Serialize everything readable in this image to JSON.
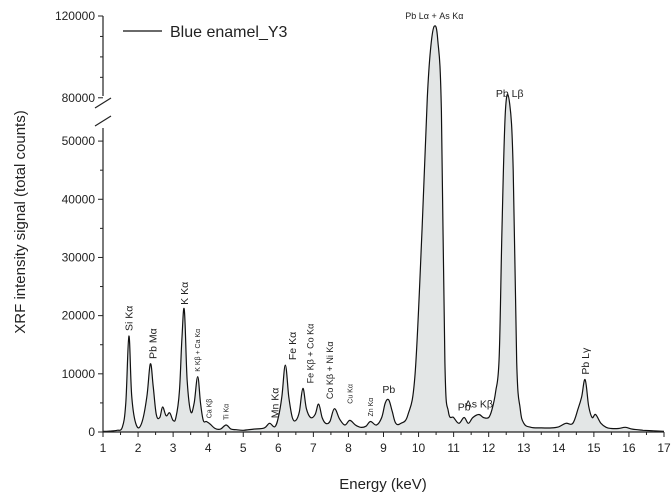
{
  "chart_data": {
    "type": "line",
    "title": "",
    "xlabel": "Energy (keV)",
    "ylabel": "XRF intensity signal (total counts)",
    "xlim": [
      1,
      17
    ],
    "x_ticks": [
      1,
      2,
      3,
      4,
      5,
      6,
      7,
      8,
      9,
      10,
      11,
      12,
      13,
      14,
      15,
      16,
      17
    ],
    "y_axis_break": {
      "from": 55000,
      "to": 75000
    },
    "y_ticks_lower": [
      0,
      10000,
      20000,
      30000,
      40000,
      50000
    ],
    "y_ticks_upper": [
      80000,
      120000
    ],
    "ylim": [
      0,
      120000
    ],
    "grid": false,
    "legend": {
      "position": "top-left",
      "entries": [
        "Blue enamel_Y3"
      ]
    },
    "series": [
      {
        "name": "Blue enamel_Y3",
        "x": [
          1.0,
          1.2,
          1.4,
          1.55,
          1.65,
          1.74,
          1.82,
          1.95,
          2.1,
          2.25,
          2.35,
          2.43,
          2.52,
          2.62,
          2.7,
          2.8,
          2.9,
          3.0,
          3.08,
          3.18,
          3.25,
          3.32,
          3.4,
          3.5,
          3.6,
          3.7,
          3.78,
          3.86,
          3.95,
          4.05,
          4.2,
          4.35,
          4.51,
          4.65,
          4.8,
          5.0,
          5.3,
          5.6,
          5.75,
          5.9,
          6.0,
          6.1,
          6.2,
          6.3,
          6.4,
          6.5,
          6.6,
          6.7,
          6.8,
          6.92,
          7.05,
          7.15,
          7.25,
          7.35,
          7.47,
          7.6,
          7.75,
          7.9,
          8.04,
          8.2,
          8.35,
          8.5,
          8.63,
          8.8,
          8.95,
          9.05,
          9.15,
          9.25,
          9.35,
          9.5,
          9.7,
          9.9,
          10.1,
          10.25,
          10.35,
          10.45,
          10.55,
          10.65,
          10.75,
          10.85,
          11.0,
          11.15,
          11.3,
          11.42,
          11.55,
          11.72,
          11.85,
          12.0,
          12.1,
          12.2,
          12.3,
          12.38,
          12.48,
          12.6,
          12.7,
          12.8,
          12.9,
          13.0,
          13.2,
          13.5,
          13.8,
          14.0,
          14.2,
          14.4,
          14.55,
          14.65,
          14.75,
          14.85,
          14.95,
          15.05,
          15.2,
          15.35,
          15.5,
          15.7,
          15.9,
          16.1,
          16.4,
          16.7,
          17.0
        ],
        "y": [
          100,
          150,
          300,
          800,
          5000,
          16500,
          6000,
          1200,
          1500,
          6000,
          11700,
          8000,
          3000,
          2500,
          4300,
          2800,
          3300,
          2000,
          2500,
          7000,
          16000,
          21000,
          9000,
          3500,
          5000,
          9500,
          5000,
          2000,
          1800,
          1400,
          600,
          500,
          1200,
          500,
          400,
          300,
          500,
          700,
          1500,
          900,
          2500,
          6000,
          11500,
          6000,
          2500,
          2000,
          3500,
          7500,
          4000,
          2500,
          3000,
          4800,
          2500,
          1500,
          1800,
          4000,
          2200,
          1200,
          2000,
          1200,
          800,
          1000,
          1800,
          1200,
          2500,
          5000,
          5500,
          3500,
          1500,
          1500,
          3000,
          10000,
          35000,
          80000,
          105000,
          115000,
          108000,
          60000,
          12000,
          3500,
          2500,
          1500,
          2500,
          1500,
          2500,
          3000,
          2500,
          2500,
          4000,
          7000,
          13000,
          35000,
          68000,
          77000,
          45000,
          12000,
          4000,
          1500,
          800,
          700,
          700,
          900,
          1500,
          1500,
          4000,
          6000,
          9000,
          4500,
          2500,
          3000,
          1500,
          800,
          600,
          600,
          800,
          500,
          300,
          200,
          100
        ]
      }
    ],
    "annotations": [
      {
        "text": "Si Kα",
        "x": 1.74,
        "y": 16500,
        "rotated": true
      },
      {
        "text": "Pb Mα",
        "x": 2.42,
        "y": 11700,
        "rotated": true
      },
      {
        "text": "K Kα",
        "x": 3.32,
        "y": 21000,
        "rotated": true
      },
      {
        "text": "K Kβ + Ca Kα",
        "x": 3.7,
        "y": 9500,
        "rotated": true
      },
      {
        "text": "Ca Kβ",
        "x": 4.02,
        "y": 1500,
        "rotated": true
      },
      {
        "text": "Ti Kα",
        "x": 4.51,
        "y": 1200,
        "rotated": true
      },
      {
        "text": "Mn Kα",
        "x": 5.9,
        "y": 1500,
        "rotated": true
      },
      {
        "text": "Fe Kα",
        "x": 6.4,
        "y": 11500,
        "rotated": true
      },
      {
        "text": "Fe Kβ + Co Kα",
        "x": 6.92,
        "y": 7500,
        "rotated": true
      },
      {
        "text": "Co Kβ + Ni Kα",
        "x": 7.47,
        "y": 4800,
        "rotated": true
      },
      {
        "text": "Cu Kα",
        "x": 8.04,
        "y": 4000,
        "rotated": true
      },
      {
        "text": "Zn Kα",
        "x": 8.63,
        "y": 1800,
        "rotated": true
      },
      {
        "text": "Pb",
        "x": 9.15,
        "y": 5500,
        "rotated": false
      },
      {
        "text": "Pb Lα + As Kα",
        "x": 10.45,
        "y": 115000,
        "rotated": false
      },
      {
        "text": "Pb",
        "x": 11.3,
        "y": 2500,
        "rotated": false
      },
      {
        "text": "As Kβ",
        "x": 11.72,
        "y": 3000,
        "rotated": false
      },
      {
        "text": "Pb Lβ",
        "x": 12.6,
        "y": 77000,
        "rotated": false
      },
      {
        "text": "Pb Lγ",
        "x": 14.75,
        "y": 9000,
        "rotated": true
      }
    ],
    "colors": {
      "line": "#111111",
      "fill": "#e3e6e6",
      "axis": "#222222"
    }
  }
}
